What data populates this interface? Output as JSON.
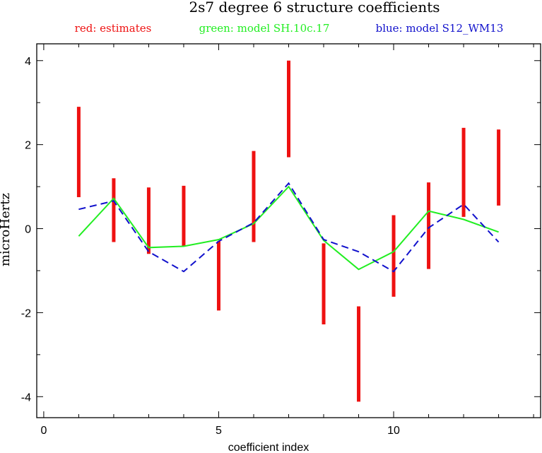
{
  "chart_data": {
    "type": "line",
    "title": "2s7 degree 6 structure coefficients",
    "xlabel": "coefficient index",
    "ylabel": "microHertz",
    "xlim": [
      -0.2,
      14.2
    ],
    "ylim": [
      -4.5,
      4.4
    ],
    "x_ticks": [
      0,
      5,
      10
    ],
    "y_ticks": [
      -4,
      -2,
      0,
      2,
      4
    ],
    "legend": [
      {
        "label": "red: estimates",
        "color": "#ee1111"
      },
      {
        "label": "green: model SH.10c.17",
        "color": "#22ee22"
      },
      {
        "label": "blue: model S12_WM13",
        "color": "#1111cc"
      }
    ],
    "estimates": [
      {
        "x": 1,
        "low": 0.75,
        "high": 2.9
      },
      {
        "x": 2,
        "low": -0.32,
        "high": 1.2
      },
      {
        "x": 3,
        "low": -0.6,
        "high": 0.98
      },
      {
        "x": 4,
        "low": -0.42,
        "high": 1.02
      },
      {
        "x": 5,
        "low": -1.95,
        "high": -0.3
      },
      {
        "x": 6,
        "low": -0.32,
        "high": 1.85
      },
      {
        "x": 7,
        "low": 1.7,
        "high": 4.0
      },
      {
        "x": 8,
        "low": -2.28,
        "high": -0.35
      },
      {
        "x": 9,
        "low": -4.12,
        "high": -1.85
      },
      {
        "x": 10,
        "low": -1.62,
        "high": 0.32
      },
      {
        "x": 11,
        "low": -0.96,
        "high": 1.1
      },
      {
        "x": 12,
        "low": 0.28,
        "high": 2.4
      },
      {
        "x": 13,
        "low": 0.55,
        "high": 2.36
      }
    ],
    "series": [
      {
        "name": "model SH.10c.17",
        "color": "#22ee22",
        "dash": false,
        "x": [
          1,
          2,
          3,
          4,
          5,
          6,
          7,
          8,
          9,
          10,
          11,
          12,
          13
        ],
        "values": [
          -0.18,
          0.72,
          -0.45,
          -0.42,
          -0.26,
          0.12,
          1.0,
          -0.28,
          -0.97,
          -0.55,
          0.42,
          0.22,
          -0.08
        ]
      },
      {
        "name": "model S12_WM13",
        "color": "#1111cc",
        "dash": true,
        "x": [
          1,
          2,
          3,
          4,
          5,
          6,
          7,
          8,
          9,
          10,
          11,
          12,
          13
        ],
        "values": [
          0.46,
          0.66,
          -0.55,
          -1.02,
          -0.3,
          0.14,
          1.08,
          -0.26,
          -0.55,
          -1.02,
          0.02,
          0.58,
          -0.32
        ]
      }
    ]
  }
}
